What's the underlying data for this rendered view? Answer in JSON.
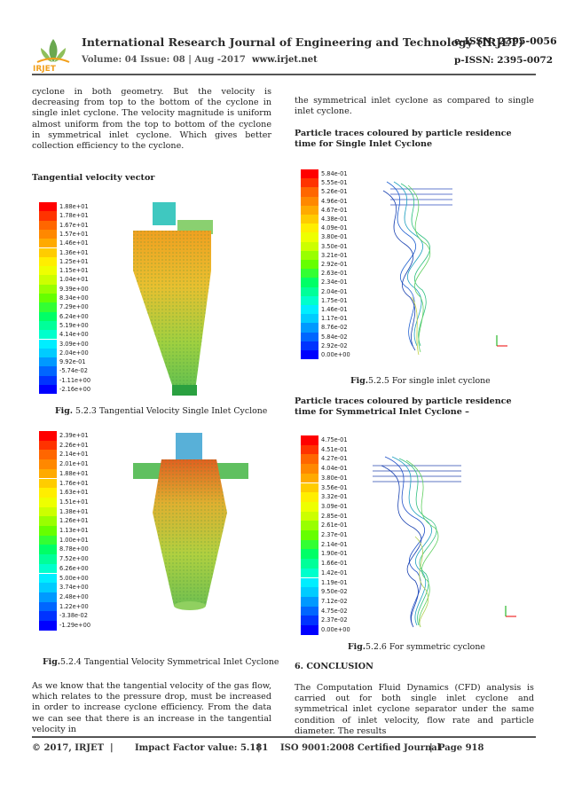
{
  "header": {
    "title": "International Research Journal of Engineering and Technology (IRJET)",
    "eissn": "e-ISSN: 2395-0056",
    "volume": "Volume: 04 Issue: 08 | Aug -2017",
    "website": "www.irjet.net",
    "pissn": "p-ISSN: 2395-0072",
    "logo_text": "IRJET"
  },
  "left_col": {
    "para1": "cyclone in both geometry. But the velocity is decreasing from top to the bottom of the cyclone in single inlet cyclone. The velocity magnitude is uniform almost uniform from the top to bottom of the cyclone in symmetrical inlet cyclone. Which gives better collection efficiency to the cyclone.",
    "heading_tv": "Tangential velocity vector",
    "fig1": {
      "legend": [
        "1.88e+01",
        "1.78e+01",
        "1.67e+01",
        "1.57e+01",
        "1.46e+01",
        "1.36e+01",
        "1.25e+01",
        "1.15e+01",
        "1.04e+01",
        "9.39e+00",
        "8.34e+00",
        "7.29e+00",
        "6.24e+00",
        "5.19e+00",
        "4.14e+00",
        "3.09e+00",
        "2.04e+00",
        "9.92e-01",
        "-5.74e-02",
        "-1.11e+00",
        "-2.16e+00"
      ],
      "cap_prefix": "Fig.",
      "cap_text": " 5.2.3 Tangential Velocity Single Inlet Cyclone"
    },
    "fig2": {
      "legend": [
        "2.39e+01",
        "2.26e+01",
        "2.14e+01",
        "2.01e+01",
        "1.88e+01",
        "1.76e+01",
        "1.63e+01",
        "1.51e+01",
        "1.38e+01",
        "1.26e+01",
        "1.13e+01",
        "1.00e+01",
        "8.78e+00",
        "7.52e+00",
        "6.26e+00",
        "5.00e+00",
        "3.74e+00",
        "2.48e+00",
        "1.22e+00",
        "-3.38e-02",
        "-1.29e+00"
      ],
      "cap_prefix": "Fig.",
      "cap_text": "5.2.4 Tangential Velocity Symmetrical Inlet Cyclone"
    },
    "para2": "As we know that the tangential velocity of the gas flow, which relates to the pressure drop, must be increased in order to increase cyclone efficiency. From the data we can see that there is an increase in the tangential velocity in"
  },
  "right_col": {
    "para1": "the symmetrical inlet cyclone as compared to single inlet cyclone.",
    "heading_single": "Particle traces coloured by particle residence time for Single Inlet Cyclone",
    "fig3": {
      "legend": [
        "5.84e-01",
        "5.55e-01",
        "5.26e-01",
        "4.96e-01",
        "4.67e-01",
        "4.38e-01",
        "4.09e-01",
        "3.80e-01",
        "3.50e-01",
        "3.21e-01",
        "2.92e-01",
        "2.63e-01",
        "2.34e-01",
        "2.04e-01",
        "1.75e-01",
        "1.46e-01",
        "1.17e-01",
        "8.76e-02",
        "5.84e-02",
        "2.92e-02",
        "0.00e+00"
      ],
      "cap_prefix": "Fig.",
      "cap_text": "5.2.5 For single inlet cyclone"
    },
    "heading_sym": "Particle traces coloured by particle residence time for Symmetrical Inlet Cyclone –",
    "fig4": {
      "legend": [
        "4.75e-01",
        "4.51e-01",
        "4.27e-01",
        "4.04e-01",
        "3.80e-01",
        "3.56e-01",
        "3.32e-01",
        "3.09e-01",
        "2.85e-01",
        "2.61e-01",
        "2.37e-01",
        "2.14e-01",
        "1.90e-01",
        "1.66e-01",
        "1.42e-01",
        "1.19e-01",
        "9.50e-02",
        "7.12e-02",
        "4.75e-02",
        "2.37e-02",
        "0.00e+00"
      ],
      "cap_prefix": "Fig.",
      "cap_text": "5.2.6 For symmetric cyclone"
    },
    "heading_conclusion": "6. CONCLUSION",
    "para_conclusion": "The Computation Fluid Dynamics (CFD) analysis is carried out for both single inlet cyclone and symmetrical inlet cyclone separator under the same condition of inlet velocity, flow rate and particle diameter. The results"
  },
  "footer": {
    "copyright": "© 2017, IRJET",
    "impact": "Impact Factor value: 5.181",
    "iso": "ISO 9001:2008 Certified Journal",
    "page": "Page 918",
    "sep": "|"
  },
  "colors": {
    "scale": [
      "#ff0000",
      "#ff3300",
      "#ff6600",
      "#ff8800",
      "#ffaa00",
      "#ffcc00",
      "#ffee00",
      "#eeff00",
      "#ccff00",
      "#99ff00",
      "#66ff00",
      "#33ff33",
      "#00ff66",
      "#00ff99",
      "#00ffcc",
      "#00eeff",
      "#00ccff",
      "#0099ff",
      "#0066ff",
      "#0033ff",
      "#0000ff"
    ]
  }
}
